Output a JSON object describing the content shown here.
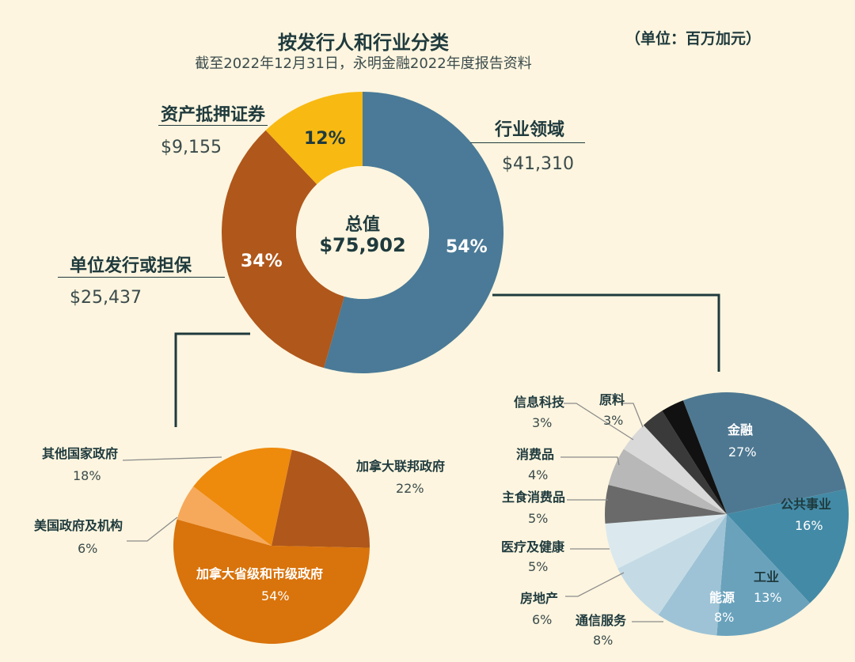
{
  "header": {
    "title": "按发行人和行业分类",
    "subtitle": "截至2022年12月31日，永明金融2022年度报告资料",
    "unit": "（单位：百万加元）"
  },
  "chart_data": [
    {
      "type": "pie",
      "variant": "donut",
      "center": {
        "label": "总值",
        "value": "$75,902"
      },
      "slices": [
        {
          "name": "行业领域",
          "amount": "$41,310",
          "value": 41310,
          "percent": 54,
          "percent_label": "54%",
          "color": "#4a7a97"
        },
        {
          "name": "单位发行或担保",
          "amount": "$25,437",
          "value": 25437,
          "percent": 34,
          "percent_label": "34%",
          "color": "#b0571b"
        },
        {
          "name": "资产抵押证券",
          "amount": "$9,155",
          "value": 9155,
          "percent": 12,
          "percent_label": "12%",
          "color": "#f8b912"
        }
      ]
    },
    {
      "type": "pie",
      "parent": "单位发行或担保",
      "slices": [
        {
          "name": "加拿大联邦政府",
          "percent": 22,
          "percent_label": "22%",
          "color": "#b0571b"
        },
        {
          "name": "加拿大省级和市级政府",
          "percent": 54,
          "percent_label": "54%",
          "color": "#d9730b"
        },
        {
          "name": "美国政府及机构",
          "percent": 6,
          "percent_label": "6%",
          "color": "#f6a95a"
        },
        {
          "name": "其他国家政府",
          "percent": 18,
          "percent_label": "18%",
          "color": "#ee8a0c"
        }
      ]
    },
    {
      "type": "pie",
      "parent": "行业领域",
      "slices": [
        {
          "name": "金融",
          "percent": 27,
          "percent_label": "27%",
          "color": "#4e7891"
        },
        {
          "name": "公共事业",
          "percent": 16,
          "percent_label": "16%",
          "color": "#438aa6"
        },
        {
          "name": "工业",
          "percent": 13,
          "percent_label": "13%",
          "color": "#6aa2bc"
        },
        {
          "name": "能源",
          "percent": 8,
          "percent_label": "8%",
          "color": "#9ec3d6"
        },
        {
          "name": "通信服务",
          "percent": 8,
          "percent_label": "8%",
          "color": "#c4dbe6"
        },
        {
          "name": "房地产",
          "percent": 6,
          "percent_label": "6%",
          "color": "#dbe9ee"
        },
        {
          "name": "医疗及健康",
          "percent": 5,
          "percent_label": "5%",
          "color": "#6a6a6a"
        },
        {
          "name": "主食消费品",
          "percent": 5,
          "percent_label": "5%",
          "color": "#b8b8b8"
        },
        {
          "name": "消费品",
          "percent": 4,
          "percent_label": "4%",
          "color": "#d9d9d9"
        },
        {
          "name": "信息科技",
          "percent": 3,
          "percent_label": "3%",
          "color": "#3a3a3a"
        },
        {
          "name": "原料",
          "percent": 3,
          "percent_label": "3%",
          "color": "#111111"
        }
      ]
    }
  ]
}
